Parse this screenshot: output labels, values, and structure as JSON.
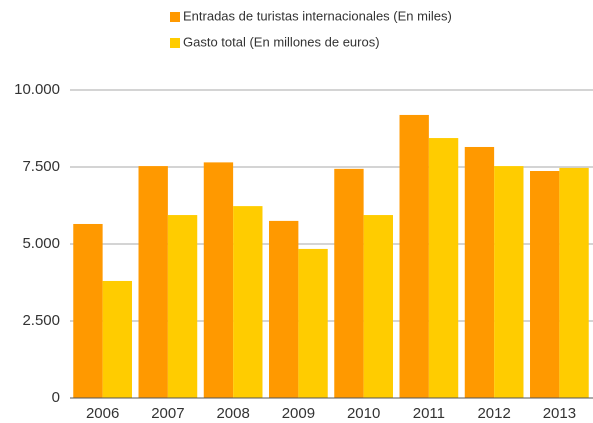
{
  "chart_data": {
    "type": "bar",
    "categories": [
      "2006",
      "2007",
      "2008",
      "2009",
      "2010",
      "2011",
      "2012",
      "2013"
    ],
    "series": [
      {
        "name": "Entradas de turistas internacionales (En miles)",
        "color": "#ff9900",
        "values": [
          5650,
          7530,
          7650,
          5750,
          7440,
          9190,
          8150,
          7370
        ]
      },
      {
        "name": "Gasto total (En millones de euros)",
        "color": "#ffcc00",
        "values": [
          3800,
          5940,
          6230,
          4840,
          5940,
          8440,
          7530,
          7470
        ]
      }
    ],
    "ylim": [
      0,
      10000
    ],
    "yticks": [
      0,
      {
        "value": 2500,
        "label": "2.500"
      },
      {
        "value": 5000,
        "label": "5.000"
      },
      {
        "value": 7500,
        "label": "7.500"
      },
      {
        "value": 10000,
        "label": "10.000"
      }
    ],
    "grid": true,
    "legend": "top"
  }
}
